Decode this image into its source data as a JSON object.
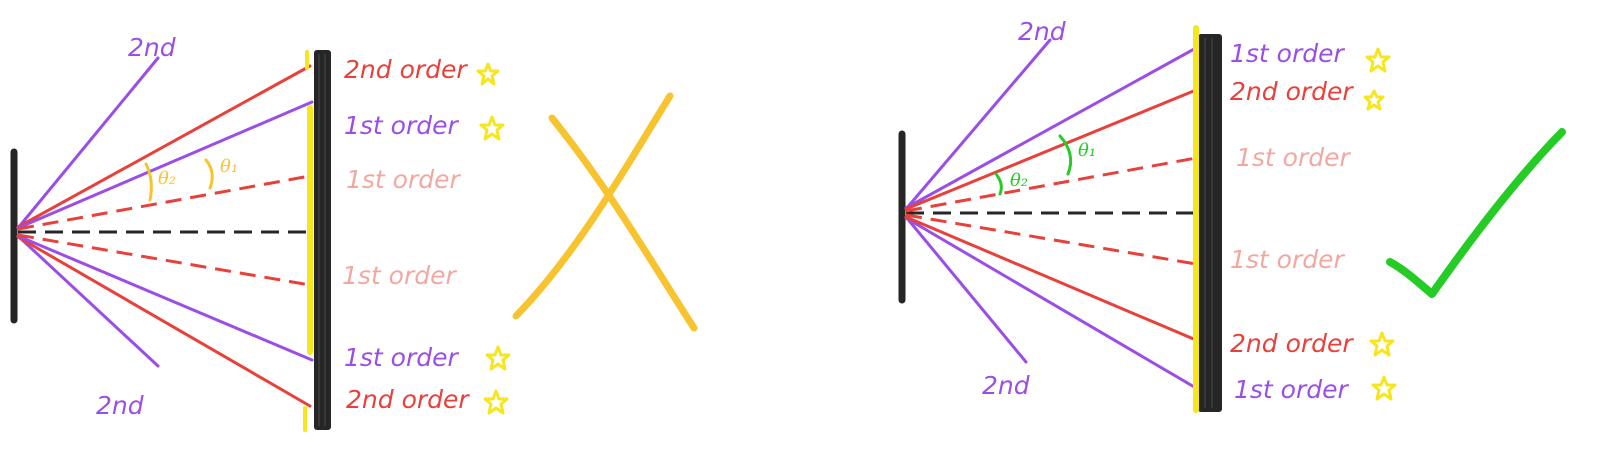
{
  "colors": {
    "red": "#e8403a",
    "purple": "#9b4ee6",
    "pink": "#f2a8a0",
    "yellow": "#f7e51e",
    "black": "#262626",
    "orange": "#f7c430",
    "green": "#25cc25"
  },
  "left": {
    "labels": {
      "top_second": "2nd",
      "bottom_second": "2nd",
      "r1": "2nd order",
      "r2": "1st order",
      "r3": "1st order",
      "r4": "1st order",
      "r5": "1st order",
      "r6": "2nd order"
    },
    "theta2": "θ₂",
    "theta1": "θ₁",
    "mark": "cross"
  },
  "right": {
    "labels": {
      "top_second": "2nd",
      "bottom_second": "2nd",
      "r1": "1st order",
      "r2": "2nd order",
      "r3": "1st order",
      "r4": "1st order",
      "r5": "2nd order",
      "r6": "1st order"
    },
    "theta2": "θ₂",
    "theta1": "θ₁",
    "mark": "check"
  },
  "star_icon": "star-icon"
}
